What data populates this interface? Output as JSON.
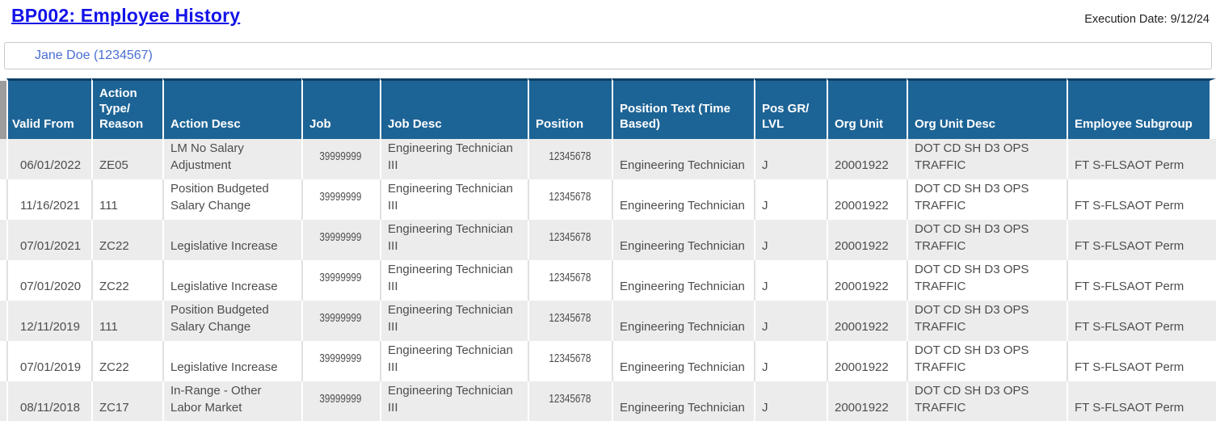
{
  "page": {
    "title": "BP002: Employee History",
    "execution_date": "Execution Date: 9/12/24",
    "employee_display": "Jane Doe (1234567)"
  },
  "colors": {
    "header_background": "#1d6496",
    "header_top_border": "#0d4066",
    "header_corner_gray": "#9d9d9d",
    "row_alt_gray": "#ececec",
    "cell_text": "#4d4d4d",
    "title_link_blue": "#1312e8",
    "employee_link_blue": "#4a6fd3"
  },
  "table": {
    "columns": [
      {
        "id": "valid_from",
        "label": "Valid From"
      },
      {
        "id": "action_type",
        "label": "Action Type/ Reason"
      },
      {
        "id": "action_desc",
        "label": "Action Desc"
      },
      {
        "id": "job",
        "label": "Job"
      },
      {
        "id": "job_desc",
        "label": "Job Desc"
      },
      {
        "id": "position",
        "label": "Position"
      },
      {
        "id": "position_text",
        "label": "Position Text (Time Based)"
      },
      {
        "id": "pos_gr_lvl",
        "label": "Pos GR/ LVL"
      },
      {
        "id": "org_unit",
        "label": "Org Unit"
      },
      {
        "id": "org_unit_desc",
        "label": "Org Unit Desc"
      },
      {
        "id": "employee_subgroup",
        "label": "Employee Subgroup"
      }
    ],
    "rows": [
      {
        "valid_from": "06/01/2022",
        "action_type": "ZE05",
        "action_desc": "LM No Salary Adjustment",
        "job": "39999999",
        "job_desc": "Engineering Technician III",
        "position": "12345678",
        "position_text": "Engineering Technician",
        "pos_gr_lvl": "J",
        "org_unit": "20001922",
        "org_unit_desc": "DOT CD SH D3 OPS TRAFFIC",
        "employee_subgroup": "FT S-FLSAOT Perm"
      },
      {
        "valid_from": "11/16/2021",
        "action_type": "111",
        "action_desc": "Position Budgeted Salary Change",
        "job": "39999999",
        "job_desc": "Engineering Technician III",
        "position": "12345678",
        "position_text": "Engineering Technician",
        "pos_gr_lvl": "J",
        "org_unit": "20001922",
        "org_unit_desc": "DOT CD SH D3 OPS TRAFFIC",
        "employee_subgroup": "FT S-FLSAOT Perm"
      },
      {
        "valid_from": "07/01/2021",
        "action_type": "ZC22",
        "action_desc": "Legislative Increase",
        "job": "39999999",
        "job_desc": "Engineering Technician III",
        "position": "12345678",
        "position_text": "Engineering Technician",
        "pos_gr_lvl": "J",
        "org_unit": "20001922",
        "org_unit_desc": "DOT CD SH D3 OPS TRAFFIC",
        "employee_subgroup": "FT S-FLSAOT Perm"
      },
      {
        "valid_from": "07/01/2020",
        "action_type": "ZC22",
        "action_desc": "Legislative Increase",
        "job": "39999999",
        "job_desc": "Engineering Technician III",
        "position": "12345678",
        "position_text": "Engineering Technician",
        "pos_gr_lvl": "J",
        "org_unit": "20001922",
        "org_unit_desc": "DOT CD SH D3 OPS TRAFFIC",
        "employee_subgroup": "FT S-FLSAOT Perm"
      },
      {
        "valid_from": "12/11/2019",
        "action_type": "111",
        "action_desc": "Position Budgeted Salary Change",
        "job": "39999999",
        "job_desc": "Engineering Technician III",
        "position": "12345678",
        "position_text": "Engineering Technician",
        "pos_gr_lvl": "J",
        "org_unit": "20001922",
        "org_unit_desc": "DOT CD SH D3 OPS TRAFFIC",
        "employee_subgroup": "FT S-FLSAOT Perm"
      },
      {
        "valid_from": "07/01/2019",
        "action_type": "ZC22",
        "action_desc": "Legislative Increase",
        "job": "39999999",
        "job_desc": "Engineering Technician III",
        "position": "12345678",
        "position_text": "Engineering Technician",
        "pos_gr_lvl": "J",
        "org_unit": "20001922",
        "org_unit_desc": "DOT CD SH D3 OPS TRAFFIC",
        "employee_subgroup": "FT S-FLSAOT Perm"
      },
      {
        "valid_from": "08/11/2018",
        "action_type": "ZC17",
        "action_desc": "In-Range - Other Labor Market",
        "job": "39999999",
        "job_desc": "Engineering Technician III",
        "position": "12345678",
        "position_text": "Engineering Technician",
        "pos_gr_lvl": "J",
        "org_unit": "20001922",
        "org_unit_desc": "DOT CD SH D3 OPS TRAFFIC",
        "employee_subgroup": "FT S-FLSAOT Perm"
      }
    ]
  }
}
